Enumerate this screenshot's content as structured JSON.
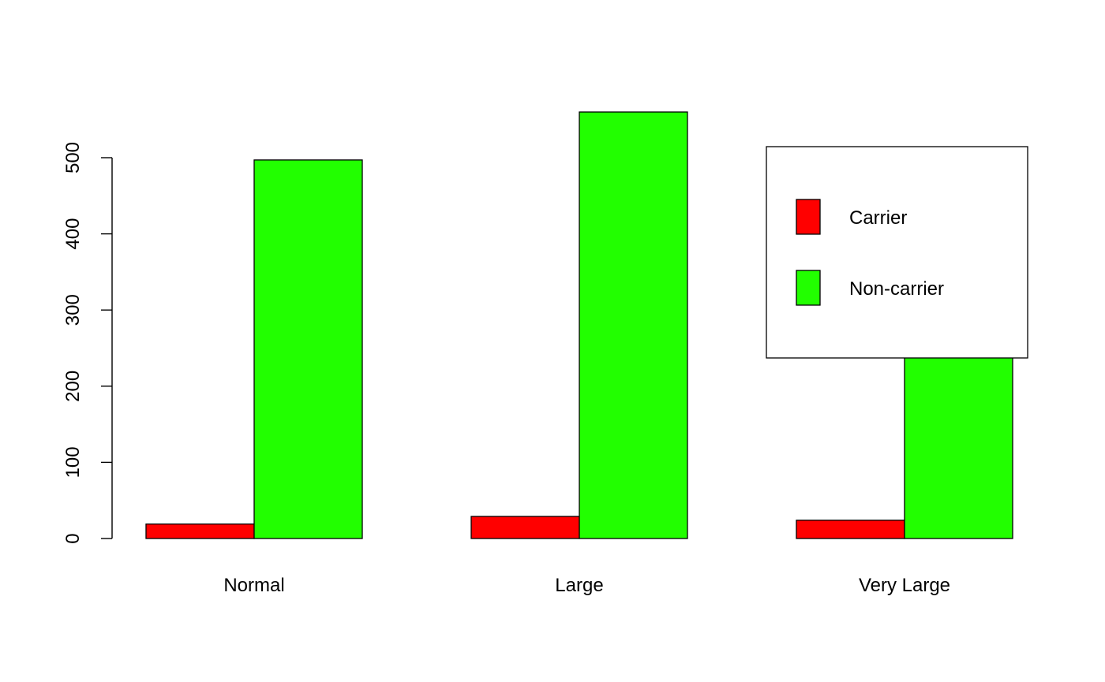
{
  "chart_data": {
    "type": "bar",
    "categories": [
      "Normal",
      "Large",
      "Very Large"
    ],
    "series": [
      {
        "name": "Carrier",
        "values": [
          19,
          29,
          24
        ],
        "color": "#FF0000"
      },
      {
        "name": "Non-carrier",
        "values": [
          497,
          560,
          269
        ],
        "color": "#22FF00"
      }
    ],
    "yticks": [
      "0",
      "100",
      "200",
      "300",
      "400",
      "500"
    ],
    "ylim": [
      0,
      560
    ],
    "title": "",
    "xlabel": "",
    "ylabel": "",
    "legend_position": "top-right",
    "grid": false
  }
}
